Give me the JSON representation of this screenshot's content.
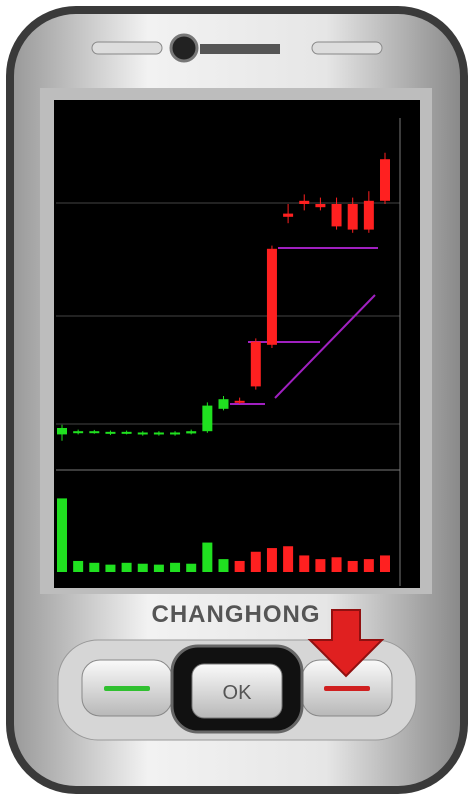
{
  "brand": "CHANGHONG",
  "ok_button": "OK",
  "chart_data": [
    {
      "type": "candlestick",
      "up_color": "#ff2020",
      "down_color": "#20e020",
      "ylim": [
        0,
        100
      ],
      "open": [
        10,
        9,
        9,
        8.8,
        8.8,
        8.6,
        8.6,
        8.6,
        9,
        17,
        19,
        18,
        23,
        36,
        76,
        80,
        79,
        73,
        72,
        72,
        81
      ],
      "close": [
        8,
        8.5,
        8.6,
        8.2,
        8.4,
        8,
        8,
        8,
        8.3,
        9,
        16,
        18.5,
        37,
        66,
        77,
        81,
        80,
        80,
        80,
        81,
        94
      ],
      "high": [
        11,
        9.5,
        9.4,
        9.2,
        9.2,
        9,
        9,
        9,
        9.5,
        18,
        20,
        19.5,
        38,
        67,
        80,
        83,
        82,
        82,
        82,
        84,
        96
      ],
      "low": [
        6,
        8,
        8.2,
        7.8,
        8,
        7.6,
        7.6,
        7.6,
        8,
        8.5,
        15.5,
        17.5,
        22,
        35,
        74,
        78,
        78,
        72,
        71,
        71,
        80
      ]
    },
    {
      "type": "bar",
      "ylim": [
        0,
        100
      ],
      "values": [
        80,
        12,
        10,
        8,
        10,
        9,
        8,
        10,
        9,
        32,
        14,
        12,
        22,
        26,
        28,
        18,
        14,
        16,
        12,
        14,
        18
      ]
    }
  ]
}
